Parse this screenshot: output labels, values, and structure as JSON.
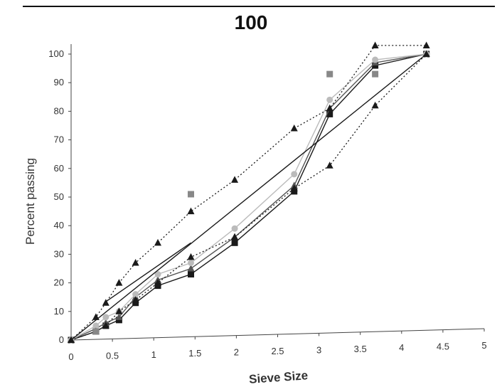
{
  "page": {
    "number": "100"
  },
  "chart_data": {
    "type": "line",
    "title": "",
    "xlabel": "Sieve Size",
    "ylabel": "Percent passing",
    "xlim": [
      0,
      5
    ],
    "ylim": [
      0,
      100
    ],
    "xticks": [
      0,
      0.5,
      1,
      1.5,
      2,
      2.5,
      3,
      3.5,
      4,
      4.5,
      5
    ],
    "yticks": [
      0,
      10,
      20,
      30,
      40,
      50,
      60,
      70,
      80,
      90,
      100
    ],
    "xtick_labels": [
      "0",
      "0.5",
      "1",
      "1.5",
      "2",
      "2.5",
      "3",
      "3.5",
      "4",
      "4.5",
      "5"
    ],
    "ytick_labels": [
      "0",
      "10",
      "20",
      "30",
      "40",
      "50",
      "60",
      "70",
      "80",
      "90",
      "100"
    ],
    "grid": false,
    "legend": "none",
    "series": [
      {
        "style": "solid",
        "color": "#1a1a1a",
        "marker": "square",
        "x": [
          0,
          0.3,
          0.42,
          0.58,
          0.78,
          1.05,
          1.45,
          1.98,
          2.7,
          3.13,
          3.68,
          4.3
        ],
        "y": [
          0,
          3,
          5,
          7,
          13,
          19,
          23,
          34,
          52,
          79,
          96,
          100
        ]
      },
      {
        "style": "solid",
        "color": "#555555",
        "marker": "triangle",
        "x": [
          0,
          0.3,
          0.42,
          0.58,
          0.78,
          1.05,
          1.45,
          1.98,
          2.7,
          3.13,
          3.68,
          4.3
        ],
        "y": [
          0,
          4,
          6,
          8,
          15,
          21,
          25,
          36,
          54,
          81,
          97,
          100
        ]
      },
      {
        "style": "solid",
        "color": "#bbbbbb",
        "marker": "circle",
        "x": [
          0,
          0.3,
          0.42,
          0.58,
          0.78,
          1.05,
          1.45,
          1.98,
          2.7,
          3.13,
          3.68,
          4.3
        ],
        "y": [
          0,
          5,
          8,
          10,
          16,
          23,
          27,
          39,
          58,
          84,
          98,
          100
        ]
      },
      {
        "style": "dotted",
        "color": "#1a1a1a",
        "marker": "triangle",
        "x": [
          0,
          0.3,
          0.42,
          0.58,
          0.78,
          1.05,
          1.45,
          1.98,
          2.7,
          3.13,
          3.68,
          4.3
        ],
        "y": [
          0,
          8,
          13,
          20,
          27,
          34,
          45,
          56,
          74,
          81,
          103,
          103
        ]
      },
      {
        "style": "dotted",
        "color": "#1a1a1a",
        "marker": "triangle",
        "x": [
          0,
          0.3,
          0.42,
          0.58,
          0.78,
          1.05,
          1.45,
          1.98,
          2.7,
          3.13,
          3.68,
          4.3
        ],
        "y": [
          0,
          3,
          5,
          10,
          14,
          20,
          29,
          36,
          53,
          61,
          82,
          100
        ]
      },
      {
        "style": "markers",
        "color": "#888888",
        "marker": "square",
        "x": [
          0.3,
          1.45,
          3.13,
          3.68
        ],
        "y": [
          3,
          51,
          93,
          93
        ]
      },
      {
        "style": "solid",
        "color": "#1a1a1a",
        "marker": "none",
        "x": [
          0,
          4.3
        ],
        "y": [
          0,
          100
        ]
      },
      {
        "style": "solid",
        "color": "#1a1a1a",
        "marker": "none",
        "x": [
          0.4,
          1.45
        ],
        "y": [
          13,
          34
        ]
      }
    ]
  }
}
